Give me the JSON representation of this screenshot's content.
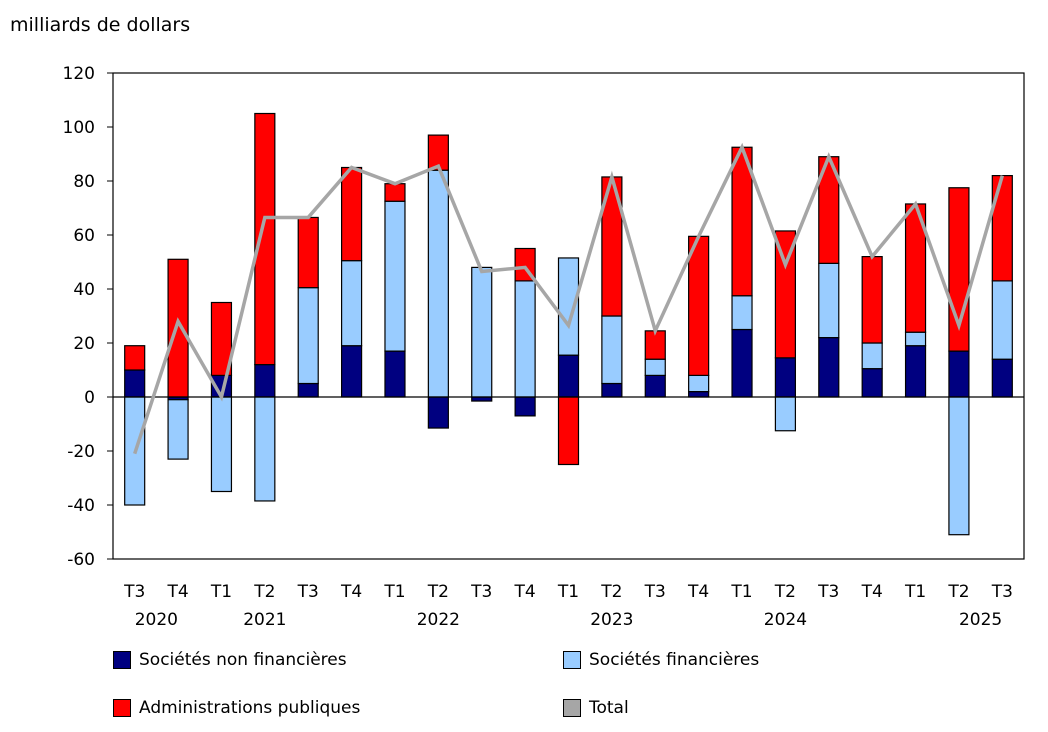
{
  "chart_data": {
    "type": "bar",
    "stacked": true,
    "ylabel": "milliards de dollars",
    "ylim": [
      -60,
      120
    ],
    "yticks": [
      -60,
      -40,
      -20,
      0,
      20,
      40,
      60,
      80,
      100,
      120
    ],
    "categories": [
      "T3",
      "T4",
      "T1",
      "T2",
      "T3",
      "T4",
      "T1",
      "T2",
      "T3",
      "T4",
      "T1",
      "T2",
      "T3",
      "T4",
      "T1",
      "T2",
      "T3",
      "T4",
      "T1",
      "T2",
      "T3"
    ],
    "year_labels": [
      {
        "label": "2020",
        "index": 0.5
      },
      {
        "label": "2021",
        "index": 3
      },
      {
        "label": "2022",
        "index": 7
      },
      {
        "label": "2023",
        "index": 11
      },
      {
        "label": "2024",
        "index": 15
      },
      {
        "label": "2025",
        "index": 19.5
      }
    ],
    "series": [
      {
        "name": "Sociétés non financières",
        "color": "#000080",
        "kind": "bar",
        "values": [
          10,
          -1,
          8,
          12,
          5,
          19,
          17,
          -11.5,
          -1.5,
          -7,
          15.5,
          5,
          8,
          2,
          25,
          14.5,
          22,
          10.5,
          19,
          17,
          14
        ]
      },
      {
        "name": "Sociétés financières",
        "color": "#99ccff",
        "kind": "bar",
        "values": [
          -40,
          -22,
          -35,
          -38.5,
          35.5,
          31.5,
          55.5,
          84,
          48,
          43,
          36,
          25,
          6,
          6,
          12.5,
          -12.5,
          27.5,
          9.5,
          5,
          -51,
          29
        ]
      },
      {
        "name": "Administrations publiques",
        "color": "#ff0000",
        "kind": "bar",
        "values": [
          9,
          51,
          27,
          93,
          26,
          34.5,
          6.5,
          13,
          0,
          12,
          -25,
          51.5,
          10.5,
          51.5,
          55,
          47,
          39.5,
          32,
          47.5,
          60.5,
          39
        ]
      },
      {
        "name": "Total",
        "color": "#a6a6a6",
        "kind": "line",
        "values": [
          -21,
          28,
          0,
          66.5,
          66.5,
          85,
          79,
          85.5,
          46.5,
          48,
          26.5,
          81.5,
          24.5,
          59.5,
          92.5,
          49,
          89,
          52,
          71.5,
          26.5,
          82
        ]
      }
    ],
    "legend_position": "bottom",
    "grid": false
  }
}
